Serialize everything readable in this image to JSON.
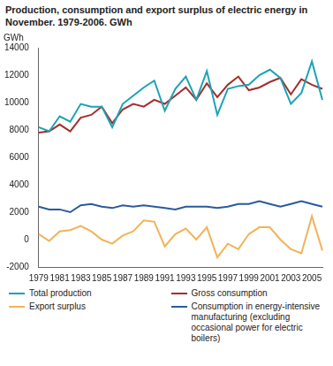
{
  "chart_data": {
    "type": "line",
    "title": "Production, consumption and export surplus of electric energy in November. 1979-2006. GWh",
    "ylabel": "GWh",
    "categories": [
      "1979",
      null,
      "1981",
      null,
      "1983",
      null,
      "1985",
      null,
      "1987",
      null,
      "1989",
      null,
      "1991",
      null,
      "1993",
      null,
      "1995",
      null,
      "1997",
      null,
      "1999",
      null,
      "2001",
      null,
      "2003",
      null,
      "2005",
      null
    ],
    "series": [
      {
        "name": "Total production",
        "color": "#1ba3b5",
        "values": [
          8200,
          7900,
          9000,
          8600,
          9900,
          9700,
          9700,
          8200,
          9900,
          10500,
          11100,
          11600,
          9400,
          11000,
          11900,
          10200,
          12300,
          9100,
          11000,
          11200,
          11300,
          12000,
          12400,
          11800,
          9900,
          10700,
          13000,
          10200
        ]
      },
      {
        "name": "Gross consumption",
        "color": "#a0302c",
        "values": [
          7800,
          7900,
          8400,
          7900,
          8900,
          9100,
          9700,
          8500,
          9500,
          9900,
          9700,
          10200,
          9900,
          10500,
          11100,
          10200,
          11400,
          10400,
          11300,
          11900,
          10900,
          11100,
          11500,
          11800,
          10600,
          11700,
          11300,
          11000
        ]
      },
      {
        "name": "Export surplus",
        "color": "#f0b45a",
        "values": [
          400,
          -100,
          600,
          700,
          1000,
          600,
          0,
          -300,
          300,
          600,
          1400,
          1300,
          -500,
          400,
          800,
          0,
          900,
          -1300,
          -300,
          -700,
          400,
          900,
          900,
          0,
          -700,
          -1000,
          1700,
          -800
        ]
      },
      {
        "name": "Consumption in energy-intensive manufacturing (excluding occasional power for electric boilers)",
        "color": "#2a5a9e",
        "values": [
          2400,
          2200,
          2200,
          2000,
          2500,
          2600,
          2400,
          2300,
          2500,
          2400,
          2500,
          2400,
          2300,
          2200,
          2400,
          2400,
          2400,
          2300,
          2400,
          2600,
          2600,
          2800,
          2600,
          2400,
          2600,
          2800,
          2600,
          2400
        ]
      }
    ],
    "ylim": [
      -2000,
      14000
    ],
    "yticks": [
      -2000,
      0,
      2000,
      4000,
      6000,
      8000,
      10000,
      12000,
      14000
    ],
    "grid": false,
    "legend": "bottom"
  }
}
